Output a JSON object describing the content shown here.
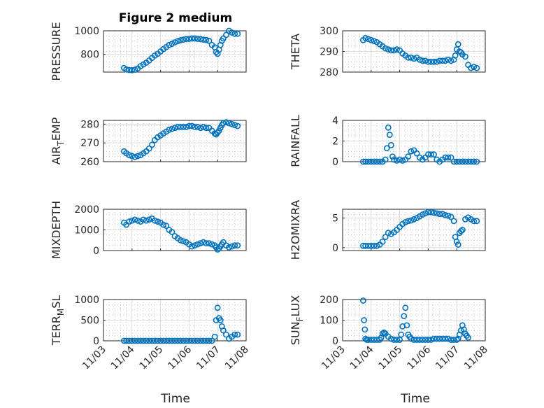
{
  "figure": {
    "title": "Figure 2 medium",
    "xlabel": "Time",
    "x_ticks": [
      "11/03",
      "11/04",
      "11/05",
      "11/06",
      "11/07",
      "11/08"
    ],
    "marker_color": "#0072BD"
  },
  "chart_data": [
    {
      "type": "scatter",
      "name": "pressure",
      "title": "Figure 2 medium",
      "ylabel_parts": [
        {
          "t": "PRESSURE"
        }
      ],
      "xlim": [
        0,
        5
      ],
      "ylim": [
        650,
        1000
      ],
      "yticks": [
        800,
        1000
      ],
      "ytick_labels": [
        "800",
        "1000"
      ],
      "xticklabels_visible": false,
      "x": [
        0.72,
        0.8,
        0.9,
        1,
        1.1,
        1.2,
        1.3,
        1.4,
        1.5,
        1.6,
        1.7,
        1.8,
        1.9,
        2,
        2.1,
        2.2,
        2.3,
        2.4,
        2.5,
        2.6,
        2.7,
        2.8,
        2.9,
        3,
        3.1,
        3.2,
        3.3,
        3.4,
        3.5,
        3.6,
        3.7,
        3.8,
        3.9,
        3.95,
        4.0,
        4.05,
        4.1,
        4.15,
        4.2,
        4.3,
        4.4,
        4.5,
        4.6,
        4.7
      ],
      "y": [
        685,
        672,
        668,
        666,
        670,
        680,
        700,
        715,
        730,
        748,
        770,
        790,
        805,
        825,
        845,
        862,
        880,
        890,
        902,
        912,
        920,
        925,
        930,
        932,
        935,
        935,
        932,
        930,
        925,
        922,
        915,
        880,
        860,
        820,
        805,
        840,
        880,
        915,
        935,
        965,
        1000,
        985,
        975,
        975
      ]
    },
    {
      "type": "scatter",
      "name": "theta",
      "ylabel_parts": [
        {
          "t": "THETA"
        }
      ],
      "xlim": [
        0,
        5
      ],
      "ylim": [
        280,
        300
      ],
      "yticks": [
        280,
        290,
        300
      ],
      "ytick_labels": [
        "280",
        "290",
        "300"
      ],
      "xticklabels_visible": false,
      "x": [
        0.72,
        0.8,
        0.9,
        1,
        1.1,
        1.2,
        1.3,
        1.4,
        1.5,
        1.6,
        1.7,
        1.8,
        1.9,
        2,
        2.1,
        2.2,
        2.3,
        2.4,
        2.5,
        2.6,
        2.7,
        2.8,
        2.9,
        3,
        3.1,
        3.2,
        3.3,
        3.4,
        3.5,
        3.6,
        3.7,
        3.8,
        3.9,
        3.95,
        4.0,
        4.05,
        4.1,
        4.15,
        4.2,
        4.3,
        4.4,
        4.5,
        4.6,
        4.7
      ],
      "y": [
        295.5,
        296.5,
        296,
        295.5,
        295,
        294.5,
        293.5,
        292.5,
        291.5,
        291,
        290.5,
        290.5,
        291,
        290.5,
        289,
        288,
        287,
        287,
        286.5,
        287,
        286,
        285.5,
        285.5,
        285,
        285,
        285,
        285,
        285.5,
        285.5,
        285.5,
        286,
        285.5,
        286,
        288,
        291,
        293.5,
        290,
        289.5,
        288.5,
        287.5,
        283.5,
        282,
        282.5,
        282
      ]
    },
    {
      "type": "scatter",
      "name": "airtemp",
      "ylabel_parts": [
        {
          "t": "AIR"
        },
        {
          "t": "T",
          "sub": true
        },
        {
          "t": "EMP"
        }
      ],
      "xlim": [
        0,
        5
      ],
      "ylim": [
        260,
        282
      ],
      "yticks": [
        260,
        270,
        280
      ],
      "ytick_labels": [
        "260",
        "270",
        "280"
      ],
      "xticklabels_visible": false,
      "x": [
        0.72,
        0.8,
        0.9,
        1,
        1.1,
        1.2,
        1.3,
        1.4,
        1.5,
        1.6,
        1.7,
        1.8,
        1.9,
        2,
        2.1,
        2.2,
        2.3,
        2.4,
        2.5,
        2.6,
        2.7,
        2.8,
        2.9,
        3,
        3.1,
        3.2,
        3.3,
        3.4,
        3.5,
        3.6,
        3.7,
        3.8,
        3.9,
        3.95,
        4.0,
        4.05,
        4.1,
        4.15,
        4.2,
        4.3,
        4.4,
        4.5,
        4.6,
        4.7
      ],
      "y": [
        265.5,
        264.5,
        263.5,
        263,
        262.5,
        263,
        263.5,
        264.5,
        265.5,
        267,
        269,
        271.5,
        273,
        274,
        275,
        276,
        277,
        277.5,
        278,
        278.5,
        278.5,
        278.5,
        278.5,
        279,
        279,
        278.5,
        278.5,
        278,
        278.5,
        278,
        278,
        276.5,
        275,
        274.5,
        275.5,
        276.5,
        278,
        279.5,
        280.5,
        281,
        280.5,
        280,
        279.5,
        279
      ]
    },
    {
      "type": "scatter",
      "name": "rainfall",
      "ylabel_parts": [
        {
          "t": "RAINFALL"
        }
      ],
      "xlim": [
        0,
        5
      ],
      "ylim": [
        0,
        4
      ],
      "yticks": [
        0,
        2,
        4
      ],
      "ytick_labels": [
        "0",
        "2",
        "4"
      ],
      "xticklabels_visible": false,
      "x": [
        0.72,
        0.8,
        0.9,
        1,
        1.1,
        1.2,
        1.3,
        1.4,
        1.5,
        1.55,
        1.6,
        1.65,
        1.7,
        1.75,
        1.8,
        1.9,
        2,
        2.1,
        2.2,
        2.3,
        2.4,
        2.5,
        2.6,
        2.7,
        2.8,
        2.9,
        3,
        3.1,
        3.2,
        3.3,
        3.4,
        3.5,
        3.6,
        3.7,
        3.8,
        3.9,
        4,
        4.1,
        4.2,
        4.3,
        4.4,
        4.5,
        4.6,
        4.7
      ],
      "y": [
        0,
        0,
        0,
        0,
        0,
        0,
        0,
        0,
        0.2,
        1.3,
        3.3,
        2.6,
        1.6,
        0.5,
        0.2,
        0.1,
        0.2,
        0.1,
        0.2,
        0.5,
        1,
        1.1,
        0.8,
        0.4,
        0.2,
        0.4,
        0.7,
        0.7,
        0.7,
        0.2,
        0,
        0.2,
        0.4,
        0.4,
        0.4,
        0,
        0,
        0,
        0,
        0,
        0,
        0,
        0,
        0
      ]
    },
    {
      "type": "scatter",
      "name": "mixdepth",
      "ylabel_parts": [
        {
          "t": "MIXDEPTH"
        }
      ],
      "xlim": [
        0,
        5
      ],
      "ylim": [
        0,
        2000
      ],
      "yticks": [
        0,
        1000,
        2000
      ],
      "ytick_labels": [
        "0",
        "1000",
        "2000"
      ],
      "xticklabels_visible": false,
      "x": [
        0.72,
        0.8,
        0.9,
        1,
        1.1,
        1.2,
        1.3,
        1.4,
        1.5,
        1.6,
        1.7,
        1.8,
        1.9,
        2,
        2.1,
        2.2,
        2.3,
        2.4,
        2.5,
        2.6,
        2.7,
        2.8,
        2.9,
        3,
        3.1,
        3.2,
        3.3,
        3.4,
        3.5,
        3.6,
        3.7,
        3.8,
        3.9,
        3.95,
        4.0,
        4.05,
        4.1,
        4.15,
        4.2,
        4.3,
        4.4,
        4.5,
        4.6,
        4.7
      ],
      "y": [
        1350,
        1250,
        1400,
        1450,
        1500,
        1450,
        1400,
        1500,
        1450,
        1500,
        1550,
        1450,
        1400,
        1350,
        1250,
        1200,
        1000,
        900,
        700,
        600,
        500,
        450,
        400,
        300,
        200,
        250,
        300,
        350,
        400,
        350,
        350,
        300,
        250,
        150,
        50,
        100,
        200,
        300,
        400,
        250,
        150,
        200,
        250,
        250
      ]
    },
    {
      "type": "scatter",
      "name": "h2omixra",
      "ylabel_parts": [
        {
          "t": "H2OMIXRA"
        }
      ],
      "xlim": [
        0,
        5
      ],
      "ylim": [
        -0.5,
        6.5
      ],
      "yticks": [
        0,
        5
      ],
      "ytick_labels": [
        "0",
        "5"
      ],
      "xticklabels_visible": false,
      "x": [
        0.72,
        0.8,
        0.9,
        1,
        1.1,
        1.2,
        1.3,
        1.4,
        1.5,
        1.6,
        1.7,
        1.8,
        1.9,
        2,
        2.1,
        2.2,
        2.3,
        2.4,
        2.5,
        2.6,
        2.7,
        2.8,
        2.9,
        3,
        3.1,
        3.2,
        3.3,
        3.4,
        3.5,
        3.6,
        3.7,
        3.8,
        3.9,
        3.95,
        4.0,
        4.05,
        4.1,
        4.15,
        4.2,
        4.3,
        4.4,
        4.5,
        4.6,
        4.7
      ],
      "y": [
        0.3,
        0.3,
        0.3,
        0.3,
        0.3,
        0.3,
        0.5,
        1,
        1.8,
        2.5,
        2.3,
        2.6,
        3,
        3.5,
        4,
        4.3,
        4.5,
        4.6,
        4.8,
        5,
        5.3,
        5.6,
        5.8,
        6,
        6,
        5.9,
        5.8,
        5.7,
        5.7,
        5.5,
        5.4,
        5.2,
        4.5,
        1.8,
        1,
        0.5,
        2.5,
        2.8,
        3,
        4.8,
        5.1,
        4.8,
        4.5,
        4.5
      ]
    },
    {
      "type": "scatter",
      "name": "terrmsl",
      "ylabel_parts": [
        {
          "t": "TERR"
        },
        {
          "t": "M",
          "sub": true
        },
        {
          "t": "SL"
        }
      ],
      "xlim": [
        0,
        5
      ],
      "ylim": [
        0,
        1000
      ],
      "yticks": [
        0,
        500,
        1000
      ],
      "ytick_labels": [
        "0",
        "500",
        "1000"
      ],
      "xticklabels_visible": true,
      "x": [
        0.72,
        0.8,
        0.9,
        1,
        1.1,
        1.2,
        1.3,
        1.4,
        1.5,
        1.6,
        1.7,
        1.8,
        1.9,
        2,
        2.1,
        2.2,
        2.3,
        2.4,
        2.5,
        2.6,
        2.7,
        2.8,
        2.9,
        3,
        3.1,
        3.2,
        3.3,
        3.4,
        3.5,
        3.6,
        3.7,
        3.8,
        3.9,
        3.95,
        4.0,
        4.05,
        4.1,
        4.15,
        4.2,
        4.3,
        4.4,
        4.5,
        4.6,
        4.7
      ],
      "y": [
        0,
        0,
        0,
        0,
        0,
        0,
        0,
        0,
        0,
        0,
        0,
        0,
        0,
        0,
        0,
        0,
        0,
        0,
        0,
        0,
        0,
        0,
        0,
        0,
        0,
        0,
        0,
        0,
        0,
        0,
        0,
        0,
        100,
        500,
        800,
        550,
        500,
        350,
        250,
        150,
        50,
        100,
        150,
        150
      ]
    },
    {
      "type": "scatter",
      "name": "sunflux",
      "ylabel_parts": [
        {
          "t": "SUN"
        },
        {
          "t": "F",
          "sub": true
        },
        {
          "t": "LUX"
        }
      ],
      "xlim": [
        0,
        5
      ],
      "ylim": [
        0,
        200
      ],
      "yticks": [
        0,
        100,
        200
      ],
      "ytick_labels": [
        "0",
        "100",
        "200"
      ],
      "xticklabels_visible": true,
      "x": [
        0.72,
        0.75,
        0.78,
        0.8,
        0.85,
        0.9,
        1,
        1.1,
        1.2,
        1.3,
        1.35,
        1.4,
        1.45,
        1.5,
        1.6,
        1.7,
        1.8,
        1.9,
        2,
        2.05,
        2.1,
        2.15,
        2.2,
        2.25,
        2.3,
        2.35,
        2.4,
        2.5,
        2.6,
        2.7,
        2.8,
        2.9,
        3,
        3.1,
        3.2,
        3.3,
        3.4,
        3.5,
        3.6,
        3.7,
        3.8,
        3.9,
        4,
        4.05,
        4.1,
        4.15,
        4.2,
        4.25,
        4.3,
        4.35,
        4.4
      ],
      "y": [
        195,
        100,
        55,
        10,
        5,
        5,
        5,
        5,
        5,
        5,
        15,
        35,
        40,
        35,
        20,
        10,
        5,
        5,
        5,
        30,
        70,
        120,
        160,
        75,
        30,
        20,
        10,
        5,
        5,
        5,
        5,
        5,
        5,
        5,
        10,
        10,
        10,
        10,
        10,
        10,
        5,
        5,
        5,
        10,
        30,
        50,
        75,
        55,
        35,
        25,
        15
      ]
    }
  ]
}
